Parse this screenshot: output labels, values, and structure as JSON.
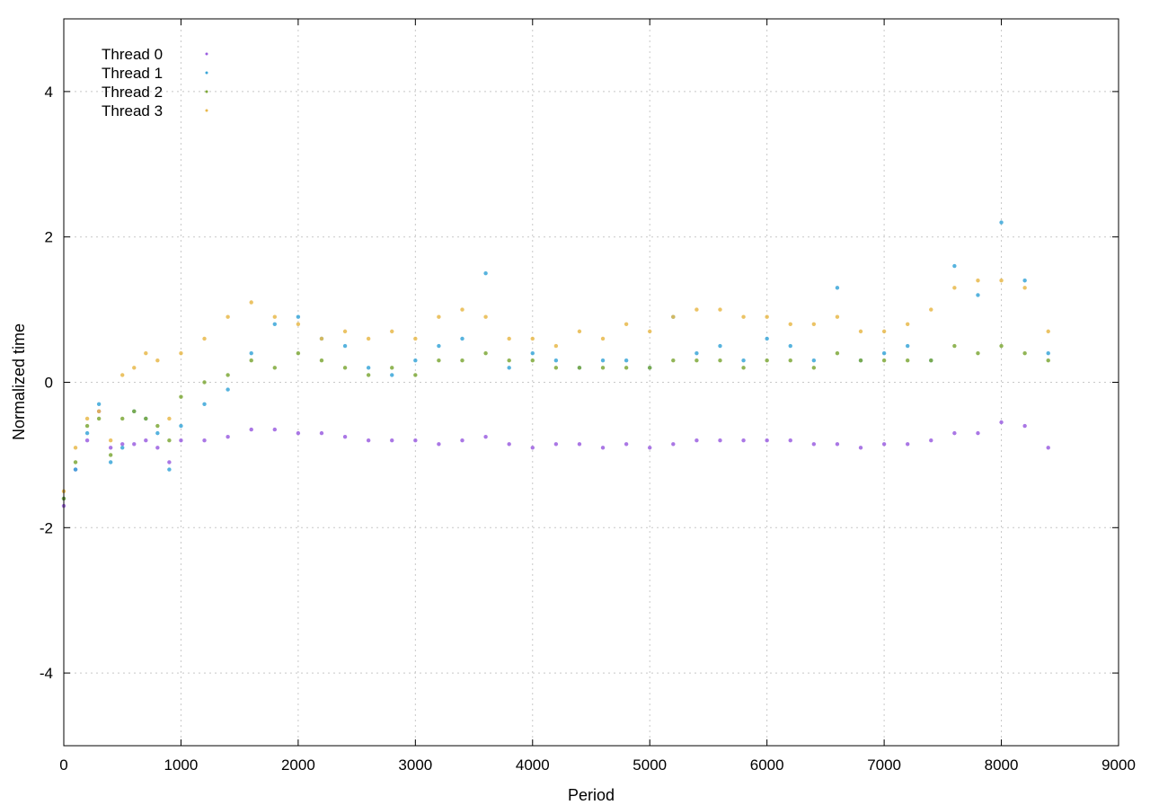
{
  "chart_data": {
    "type": "scatter",
    "title": "",
    "xlabel": "Period",
    "ylabel": "Normalized time",
    "xlim": [
      0,
      9000
    ],
    "ylim": [
      -5,
      5
    ],
    "xticks": [
      0,
      1000,
      2000,
      3000,
      4000,
      5000,
      6000,
      7000,
      8000,
      9000
    ],
    "yticks": [
      -4,
      -2,
      0,
      2,
      4
    ],
    "grid": true,
    "legend_position": "top-left",
    "series": [
      {
        "name": "Thread 0",
        "color": "#9b5fe0",
        "x": [
          0,
          100,
          200,
          300,
          400,
          500,
          600,
          700,
          800,
          900,
          1000,
          1200,
          1400,
          1600,
          1800,
          2000,
          2200,
          2400,
          2600,
          2800,
          3000,
          3200,
          3400,
          3600,
          3800,
          4000,
          4200,
          4400,
          4600,
          4800,
          5000,
          5200,
          5400,
          5600,
          5800,
          6000,
          6200,
          6400,
          6600,
          6800,
          7000,
          7200,
          7400,
          7600,
          7800,
          8000,
          8200,
          8400
        ],
        "y": [
          -1.7,
          -1.2,
          -0.8,
          -0.4,
          -0.9,
          -0.85,
          -0.85,
          -0.8,
          -0.9,
          -1.1,
          -0.8,
          -0.8,
          -0.75,
          -0.65,
          -0.65,
          -0.7,
          -0.7,
          -0.75,
          -0.8,
          -0.8,
          -0.8,
          -0.85,
          -0.8,
          -0.75,
          -0.85,
          -0.9,
          -0.85,
          -0.85,
          -0.9,
          -0.85,
          -0.9,
          -0.85,
          -0.8,
          -0.8,
          -0.8,
          -0.8,
          -0.8,
          -0.85,
          -0.85,
          -0.9,
          -0.85,
          -0.85,
          -0.8,
          -0.7,
          -0.7,
          -0.55,
          -0.6,
          -0.9
        ]
      },
      {
        "name": "Thread 1",
        "color": "#3aa6d8",
        "x": [
          0,
          100,
          200,
          300,
          400,
          500,
          600,
          700,
          800,
          900,
          1000,
          1200,
          1400,
          1600,
          1800,
          2000,
          2200,
          2400,
          2600,
          2800,
          3000,
          3200,
          3400,
          3600,
          3800,
          4000,
          4200,
          4400,
          4600,
          4800,
          5000,
          5200,
          5400,
          5600,
          5800,
          6000,
          6200,
          6400,
          6600,
          6800,
          7000,
          7200,
          7400,
          7600,
          7800,
          8000,
          8200,
          8400
        ],
        "y": [
          -1.6,
          -1.2,
          -0.7,
          -0.3,
          -1.1,
          -0.9,
          -0.4,
          -0.5,
          -0.7,
          -1.2,
          -0.6,
          -0.3,
          -0.1,
          0.4,
          0.8,
          0.9,
          0.6,
          0.5,
          0.2,
          0.1,
          0.3,
          0.5,
          0.6,
          1.5,
          0.2,
          0.4,
          0.3,
          0.2,
          0.3,
          0.3,
          0.2,
          0.9,
          0.4,
          0.5,
          0.3,
          0.6,
          0.5,
          0.3,
          1.3,
          0.3,
          0.4,
          0.5,
          0.3,
          1.6,
          1.2,
          2.2,
          1.4,
          0.4
        ]
      },
      {
        "name": "Thread 2",
        "color": "#7ea838",
        "x": [
          0,
          100,
          200,
          300,
          400,
          500,
          600,
          700,
          800,
          900,
          1000,
          1200,
          1400,
          1600,
          1800,
          2000,
          2200,
          2400,
          2600,
          2800,
          3000,
          3200,
          3400,
          3600,
          3800,
          4000,
          4200,
          4400,
          4600,
          4800,
          5000,
          5200,
          5400,
          5600,
          5800,
          6000,
          6200,
          6400,
          6600,
          6800,
          7000,
          7200,
          7400,
          7600,
          7800,
          8000,
          8200,
          8400
        ],
        "y": [
          -1.6,
          -1.1,
          -0.6,
          -0.5,
          -1.0,
          -0.5,
          -0.4,
          -0.5,
          -0.6,
          -0.8,
          -0.2,
          0.0,
          0.1,
          0.3,
          0.2,
          0.4,
          0.3,
          0.2,
          0.1,
          0.2,
          0.1,
          0.3,
          0.3,
          0.4,
          0.3,
          0.3,
          0.2,
          0.2,
          0.2,
          0.2,
          0.2,
          0.3,
          0.3,
          0.3,
          0.2,
          0.3,
          0.3,
          0.2,
          0.4,
          0.3,
          0.3,
          0.3,
          0.3,
          0.5,
          0.4,
          0.5,
          0.4,
          0.3
        ]
      },
      {
        "name": "Thread 3",
        "color": "#e8b84a",
        "x": [
          0,
          100,
          200,
          300,
          400,
          500,
          600,
          700,
          800,
          900,
          1000,
          1200,
          1400,
          1600,
          1800,
          2000,
          2200,
          2400,
          2600,
          2800,
          3000,
          3200,
          3400,
          3600,
          3800,
          4000,
          4200,
          4400,
          4600,
          4800,
          5000,
          5200,
          5400,
          5600,
          5800,
          6000,
          6200,
          6400,
          6600,
          6800,
          7000,
          7200,
          7400,
          7600,
          7800,
          8000,
          8200,
          8400
        ],
        "y": [
          -1.5,
          -0.9,
          -0.5,
          -0.4,
          -0.8,
          0.1,
          0.2,
          0.4,
          0.3,
          -0.5,
          0.4,
          0.6,
          0.9,
          1.1,
          0.9,
          0.8,
          0.6,
          0.7,
          0.6,
          0.7,
          0.6,
          0.9,
          1.0,
          0.9,
          0.6,
          0.6,
          0.5,
          0.7,
          0.6,
          0.8,
          0.7,
          0.9,
          1.0,
          1.0,
          0.9,
          0.9,
          0.8,
          0.8,
          0.9,
          0.7,
          0.7,
          0.8,
          1.0,
          1.3,
          1.4,
          1.4,
          1.3,
          0.7
        ]
      }
    ]
  }
}
